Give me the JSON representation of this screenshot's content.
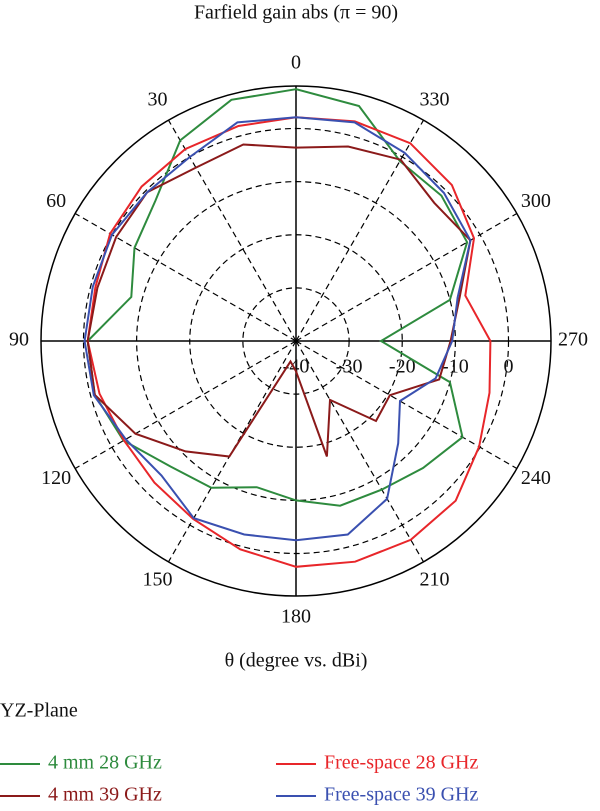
{
  "chart_data": {
    "type": "polar",
    "title": "Farfield gain abs (π = 90)",
    "xlabel": "θ (degree vs. dBi)",
    "legend_title": "YZ-Plane",
    "theta": [
      0,
      15,
      30,
      45,
      60,
      75,
      90,
      105,
      120,
      135,
      150,
      165,
      180,
      195,
      210,
      225,
      240,
      255,
      270,
      285,
      300,
      315,
      330,
      345
    ],
    "series": [
      {
        "name": "4 mm 28 GHz",
        "color": "#2e8b3e",
        "values": [
          7.4,
          7.0,
          3.6,
          -2.6,
          -4.9,
          -7.9,
          -0.8,
          -0.8,
          -2.5,
          -6.6,
          -8.1,
          -11.5,
          -10.0,
          -7.9,
          -7.7,
          -6.2,
          -3.8,
          -10.0,
          -24.0,
          -10.0,
          -2.8,
          -1.3,
          -0.9,
          5.8
        ]
      },
      {
        "name": "Free-space 28 GHz",
        "color": "#e8262a",
        "values": [
          2.1,
          1.9,
          1.7,
          1.1,
          0.4,
          -0.9,
          -0.8,
          -1.7,
          -2.6,
          -2.3,
          -1.3,
          0.6,
          2.5,
          3.0,
          3.2,
          2.5,
          -0.2,
          -2.3,
          -3.4,
          -7.0,
          -1.3,
          1.5,
          3.0,
          2.8
        ]
      },
      {
        "name": "4 mm 39 GHz",
        "color": "#8b1a1a",
        "values": [
          -3.6,
          -1.7,
          -2.3,
          -0.4,
          -0.9,
          -1.3,
          -0.8,
          -0.8,
          -5.1,
          -10.6,
          -14.9,
          -36.0,
          -34.3,
          -17.5,
          -27.2,
          -18.7,
          -19.6,
          -12.1,
          -10.9,
          -8.1,
          -2.1,
          -3.2,
          -0.6,
          -2.1
        ]
      },
      {
        "name": "Free-space 39 GHz",
        "color": "#3a50b0",
        "values": [
          2.1,
          2.6,
          0.0,
          -0.4,
          0.0,
          -0.4,
          -0.2,
          -0.6,
          -3.0,
          -4.2,
          -1.5,
          -2.3,
          -2.5,
          -2.3,
          -5.7,
          -12.8,
          -17.4,
          -12.8,
          -10.6,
          -8.5,
          -2.1,
          -0.6,
          0.9,
          2.6
        ]
      }
    ],
    "rlim": [
      -40,
      8
    ],
    "rticks": [
      -40,
      -30,
      -20,
      -10,
      0
    ],
    "thetaticks": [
      0,
      30,
      60,
      90,
      120,
      150,
      180,
      210,
      240,
      270,
      300,
      330
    ],
    "grid": true
  }
}
